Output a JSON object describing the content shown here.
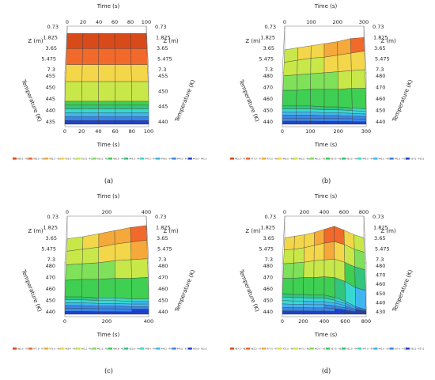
{
  "colors": {
    "palette": [
      "#d94a1a",
      "#f2692c",
      "#f5a93a",
      "#f4d64a",
      "#c8e84a",
      "#7fe05a",
      "#3fcf52",
      "#33c47d",
      "#38d8d0",
      "#3fb6f0",
      "#3a86e8",
      "#1f42c8"
    ],
    "grid": "#333333",
    "frame": "#555555"
  },
  "captions": [
    "(a)",
    "(b)",
    "(c)",
    "(d)"
  ],
  "chart_data": [
    {
      "type": "surface3d",
      "caption": "(a)",
      "time_label": "Time (s)",
      "time_ticks": [
        "0",
        "20",
        "40",
        "60",
        "80",
        "100"
      ],
      "z_label": "Z (m)",
      "z_ticks": [
        "0.73",
        "1.825",
        "3.65",
        "5.475",
        "7.3"
      ],
      "temp_label": "Temperature (K)",
      "temp_ticks_left": [
        "455",
        "450",
        "445",
        "440",
        "435"
      ],
      "temp_ticks_right": [
        "455",
        "450",
        "445",
        "440"
      ],
      "time": [
        0,
        20,
        40,
        60,
        80,
        100
      ],
      "z": [
        0.73,
        1.825,
        3.65,
        5.475,
        7.3
      ],
      "zlim": [
        435,
        460
      ],
      "temperature": [
        [
          459.5,
          459.5,
          459.5,
          459.5,
          459.5,
          459.5
        ],
        [
          457.5,
          457.5,
          457.5,
          457.5,
          457.5,
          457.5
        ],
        [
          455.0,
          455.0,
          455.0,
          455.0,
          455.0,
          455.0
        ],
        [
          452.0,
          452.0,
          452.0,
          452.0,
          452.0,
          452.0
        ],
        [
          447.5,
          447.5,
          447.5,
          447.5,
          447.5,
          447.5
        ]
      ],
      "legend": [
        "459.5 - 458.0",
        "458.0 - 456.5",
        "456.5 - 455.0",
        "455.0 - 453.5",
        "453.5 - 452.0",
        "452.0 - 450.5",
        "450.5 - 449.0",
        "449.0 - 447.5",
        "447.5 - 446.0",
        "446.0 - 444.5",
        "444.5 - 443.0",
        "443.0 - 441.5"
      ]
    },
    {
      "type": "surface3d",
      "caption": "(b)",
      "time_label": "Time (s)",
      "time_ticks": [
        "0",
        "100",
        "200",
        "300"
      ],
      "z_label": "Z (m)",
      "z_ticks": [
        "0.73",
        "1.825",
        "3.65",
        "5.475",
        "7.3"
      ],
      "temp_label": "Temperature (K)",
      "temp_ticks_left": [
        "480",
        "470",
        "460",
        "450",
        "440"
      ],
      "temp_ticks_right": [
        "480",
        "470",
        "460",
        "450",
        "440"
      ],
      "time": [
        0,
        50,
        100,
        150,
        200,
        250,
        300
      ],
      "z": [
        0.73,
        1.825,
        3.65,
        5.475,
        7.3
      ],
      "zlim": [
        440,
        485
      ],
      "temperature": [
        [
          468,
          470,
          472,
          474,
          476,
          479,
          480
        ],
        [
          467,
          469,
          471,
          472,
          474,
          476,
          478
        ],
        [
          465,
          466,
          467,
          468,
          469,
          470,
          471
        ],
        [
          462,
          462,
          463,
          463,
          463,
          464,
          464
        ],
        [
          458,
          458,
          458,
          457,
          457,
          456,
          455
        ]
      ],
      "legend": [
        "481.0 - 477.0",
        "477.0 - 473.0",
        "473.0 - 469.0",
        "469.0 - 465.0",
        "465.0 - 461.0",
        "461.0 - 457.0",
        "457.0 - 453.0",
        "453.0 - 449.0",
        "449.0 - 445.0",
        "445.0 - 441.0",
        "441.0 - 437.0",
        "437.0 - 433.0"
      ]
    },
    {
      "type": "surface3d",
      "caption": "(c)",
      "time_label": "Time (s)",
      "time_ticks": [
        "0",
        "200",
        "400"
      ],
      "z_label": "Z (m)",
      "z_ticks": [
        "0.73",
        "1.825",
        "3.65",
        "5.475",
        "7.3"
      ],
      "temp_label": "Temperature (K)",
      "temp_ticks_left": [
        "480",
        "470",
        "460",
        "450",
        "440"
      ],
      "temp_ticks_right": [
        "480",
        "470",
        "460",
        "450",
        "440"
      ],
      "time": [
        0,
        100,
        200,
        300,
        400,
        500
      ],
      "z": [
        0.73,
        1.825,
        3.65,
        5.475,
        7.3
      ],
      "zlim": [
        440,
        485
      ],
      "temperature": [
        [
          469,
          471,
          474,
          477,
          480,
          482
        ],
        [
          468,
          470,
          472,
          475,
          477,
          479
        ],
        [
          466,
          467,
          468,
          470,
          471,
          472
        ],
        [
          462,
          463,
          463,
          464,
          464,
          465
        ],
        [
          457,
          457,
          456,
          456,
          455,
          455
        ]
      ],
      "legend": [
        "482.0 - 477.8",
        "477.8 - 473.6",
        "473.6 - 469.4",
        "469.4 - 465.2",
        "465.2 - 461.0",
        "461.0 - 456.8",
        "456.8 - 452.6",
        "452.6 - 448.4",
        "448.4 - 444.2",
        "444.2 - 440.0",
        "440.0 - 435.8",
        "435.8 - 431.6"
      ]
    },
    {
      "type": "surface3d",
      "caption": "(d)",
      "time_label": "Time (s)",
      "time_ticks": [
        "0",
        "200",
        "400",
        "600",
        "800"
      ],
      "z_label": "Z (m)",
      "z_ticks": [
        "0.73",
        "1.825",
        "3.65",
        "5.475",
        "7.3"
      ],
      "temp_label": "Temperature (K)",
      "temp_ticks_left": [
        "480",
        "470",
        "460",
        "450",
        "440"
      ],
      "temp_ticks_right": [
        "480",
        "470",
        "460",
        "450",
        "440",
        "430"
      ],
      "time": [
        0,
        100,
        200,
        300,
        400,
        500,
        600,
        700,
        800
      ],
      "z": [
        0.73,
        1.825,
        3.65,
        5.475,
        7.3
      ],
      "zlim": [
        430,
        490
      ],
      "temperature": [
        [
          470,
          472,
          474,
          477,
          481,
          485,
          480,
          474,
          470
        ],
        [
          469,
          470,
          472,
          475,
          478,
          480,
          476,
          470,
          466
        ],
        [
          466,
          467,
          468,
          470,
          471,
          472,
          468,
          462,
          458
        ],
        [
          462,
          462,
          463,
          463,
          464,
          463,
          458,
          450,
          446
        ],
        [
          457,
          456,
          456,
          455,
          455,
          452,
          447,
          440,
          436
        ]
      ],
      "legend": [
        "487.0 - 482.0",
        "482.0 - 477.0",
        "477.0 - 472.0",
        "472.0 - 467.0",
        "467.0 - 462.0",
        "462.0 - 457.0",
        "457.0 - 452.0",
        "452.0 - 447.0",
        "447.0 - 442.0",
        "442.0 - 437.0",
        "437.0 - 432.0",
        "432.0 - 427.0"
      ]
    }
  ]
}
